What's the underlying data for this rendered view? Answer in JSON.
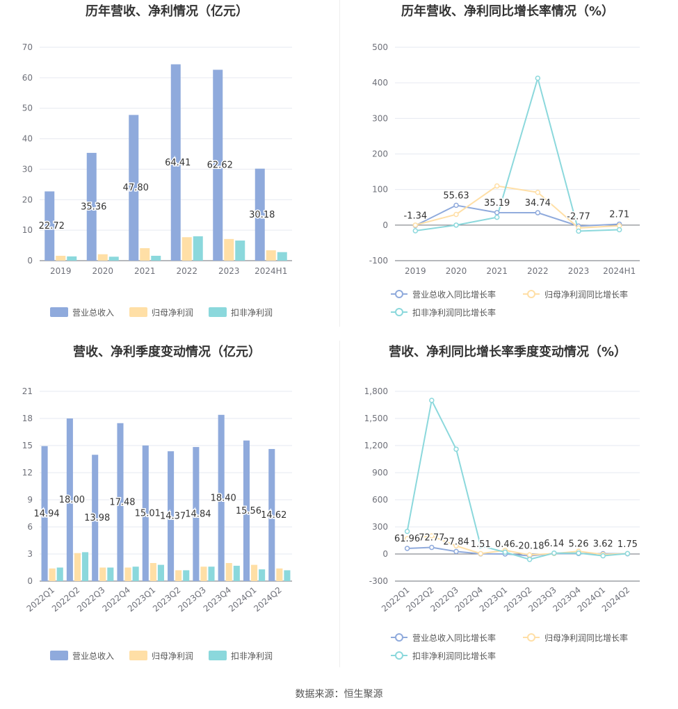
{
  "source": "数据来源：恒生聚源",
  "colors": {
    "revenue": "#8faadc",
    "net_profit": "#ffdfa6",
    "deducted_profit": "#8bd8dc",
    "grid": "#e6e9f0",
    "axis": "#6e7079",
    "title": "#333333"
  },
  "charts": [
    {
      "title": "历年营收、净利情况（亿元）",
      "type": "bar",
      "categories": [
        "2019",
        "2020",
        "2021",
        "2022",
        "2023",
        "2024H1"
      ],
      "yticks": [
        "0",
        "10",
        "20",
        "30",
        "40",
        "50",
        "60",
        "70"
      ],
      "ylim": [
        0,
        70
      ],
      "series": [
        {
          "name": "营业总收入",
          "values": [
            22.72,
            35.36,
            47.8,
            64.41,
            62.62,
            30.18
          ]
        },
        {
          "name": "归母净利润",
          "values": [
            1.6,
            2.1,
            4.1,
            7.7,
            7.1,
            3.4
          ]
        },
        {
          "name": "扣非净利润",
          "values": [
            1.4,
            1.3,
            1.6,
            8.0,
            6.6,
            2.8
          ]
        }
      ],
      "labels": [
        "22.72",
        "35.36",
        "47.80",
        "64.41",
        "62.62",
        "30.18"
      ]
    },
    {
      "title": "历年营收、净利同比增长率情况（%）",
      "type": "line",
      "categories": [
        "2019",
        "2020",
        "2021",
        "2022",
        "2023",
        "2024H1"
      ],
      "yticks": [
        "-100",
        "0",
        "100",
        "200",
        "300",
        "400",
        "500"
      ],
      "ylim": [
        -100,
        500
      ],
      "series": [
        {
          "name": "营业总收入同比增长率",
          "values": [
            -1.34,
            55.63,
            35.19,
            34.74,
            -2.77,
            2.71
          ]
        },
        {
          "name": "归母净利润同比增长率",
          "values": [
            0,
            30,
            110,
            92,
            -8,
            -2
          ]
        },
        {
          "name": "扣非净利润同比增长率",
          "values": [
            -16,
            0,
            22,
            413,
            -17,
            -13
          ]
        }
      ],
      "labels": [
        "-1.34",
        "55.63",
        "35.19",
        "34.74",
        "-2.77",
        "2.71"
      ]
    },
    {
      "title": "营收、净利季度变动情况（亿元）",
      "type": "bar",
      "categories": [
        "2022Q1",
        "2022Q2",
        "2022Q3",
        "2022Q4",
        "2023Q1",
        "2023Q2",
        "2023Q3",
        "2023Q4",
        "2024Q1",
        "2024Q2"
      ],
      "yticks": [
        "0",
        "3",
        "6",
        "9",
        "12",
        "15",
        "18",
        "21"
      ],
      "ylim": [
        0,
        21
      ],
      "series": [
        {
          "name": "营业总收入",
          "values": [
            14.94,
            18.0,
            13.98,
            17.48,
            15.01,
            14.37,
            14.84,
            18.4,
            15.56,
            14.62
          ]
        },
        {
          "name": "归母净利润",
          "values": [
            1.4,
            3.1,
            1.5,
            1.5,
            2.0,
            1.2,
            1.6,
            2.0,
            1.8,
            1.4
          ]
        },
        {
          "name": "扣非净利润",
          "values": [
            1.5,
            3.2,
            1.5,
            1.6,
            1.8,
            1.2,
            1.6,
            1.7,
            1.3,
            1.2
          ]
        }
      ],
      "labels": [
        "14.94",
        "18.00",
        "13.98",
        "17.48",
        "15.01",
        "14.37",
        "14.84",
        "18.40",
        "15.56",
        "14.62"
      ]
    },
    {
      "title": "营收、净利同比增长率季度变动情况（%）",
      "type": "line",
      "categories": [
        "2022Q1",
        "2022Q2",
        "2022Q3",
        "2022Q4",
        "2023Q1",
        "2023Q2",
        "2023Q3",
        "2023Q4",
        "2024Q1",
        "2024Q2"
      ],
      "yticks": [
        "-300",
        "0",
        "300",
        "600",
        "900",
        "1,200",
        "1,500",
        "1,800"
      ],
      "ylim": [
        -300,
        1800
      ],
      "series": [
        {
          "name": "营业总收入同比增长率",
          "values": [
            61.96,
            72.77,
            27.84,
            1.51,
            0.46,
            -20.18,
            6.14,
            5.26,
            3.62,
            1.75
          ]
        },
        {
          "name": "归母净利润同比增长率",
          "values": [
            170,
            200,
            90,
            5,
            40,
            -10,
            5,
            30,
            -5,
            5
          ]
        },
        {
          "name": "扣非净利润同比增长率",
          "values": [
            250,
            1700,
            1160,
            90,
            20,
            -60,
            10,
            10,
            -20,
            5
          ]
        }
      ],
      "labels": [
        "61.96",
        "72.77",
        "27.84",
        "1.51",
        "0.46",
        "-20.18",
        "6.14",
        "5.26",
        "3.62",
        "1.75"
      ]
    }
  ]
}
